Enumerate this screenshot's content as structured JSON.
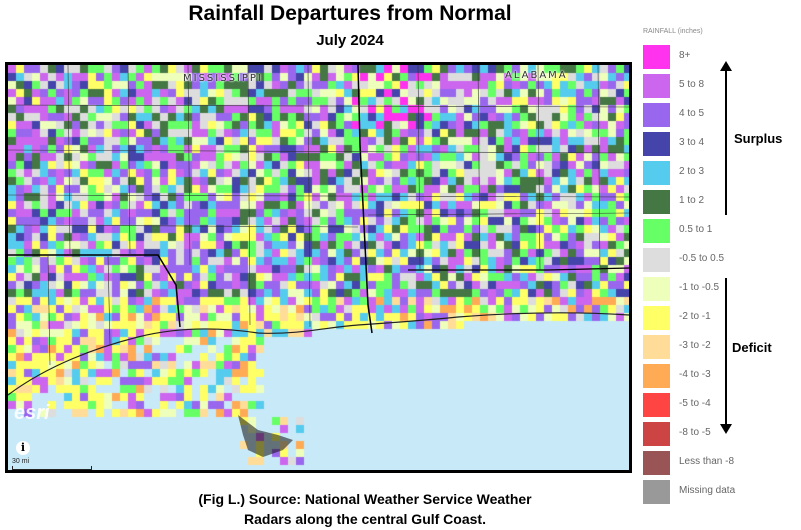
{
  "title": "Rainfall Departures from Normal",
  "subtitle": "July 2024",
  "map": {
    "state_labels": [
      "MISSISSIPPI",
      "ALABAMA"
    ],
    "attribution_logo": "esri",
    "scale_label": "30 mi",
    "info_icon": "info-icon",
    "colors": {
      "gulf_water": "#c8e9f8",
      "county_lines": "#333333",
      "state_lines": "#000000"
    }
  },
  "legend": {
    "header": "RAINFALL (inches)",
    "items": [
      {
        "label": "8+",
        "color": "#ff33ee"
      },
      {
        "label": "5 to 8",
        "color": "#cc66ee"
      },
      {
        "label": "4 to 5",
        "color": "#9966ee"
      },
      {
        "label": "3 to 4",
        "color": "#4444aa"
      },
      {
        "label": "2 to 3",
        "color": "#55ccee"
      },
      {
        "label": "1 to 2",
        "color": "#447744"
      },
      {
        "label": "0.5 to 1",
        "color": "#66ff66"
      },
      {
        "label": "-0.5 to 0.5",
        "color": "#dddddd"
      },
      {
        "label": "-1 to -0.5",
        "color": "#eeffbb"
      },
      {
        "label": "-2 to -1",
        "color": "#ffff66"
      },
      {
        "label": "-3 to -2",
        "color": "#ffdd99"
      },
      {
        "label": "-4 to -3",
        "color": "#ffaa55"
      },
      {
        "label": "-5 to -4",
        "color": "#ff4444"
      },
      {
        "label": "-8 to -5",
        "color": "#cc4444"
      },
      {
        "label": "Less than -8",
        "color": "#995555"
      },
      {
        "label": "Missing data",
        "color": "#999999"
      }
    ]
  },
  "annotations": {
    "surplus_label": "Surplus",
    "deficit_label": "Deficit"
  },
  "caption": {
    "line1": "(Fig L.) Source: National Weather Service Weather",
    "line2": "Radars along the central Gulf Coast."
  }
}
